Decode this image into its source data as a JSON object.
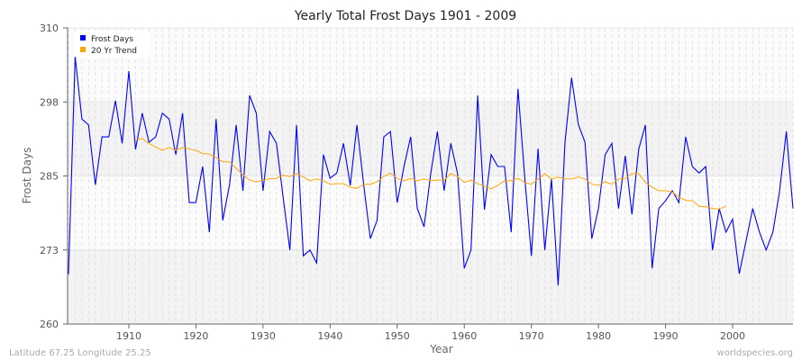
{
  "chart_data": {
    "type": "line",
    "title": "Yearly Total Frost Days 1901 - 2009",
    "xlabel": "Year",
    "ylabel": "Frost Days",
    "xlim": [
      1901,
      2009
    ],
    "ylim": [
      260,
      310
    ],
    "yticks": [
      {
        "value": 260,
        "label": "260"
      },
      {
        "value": 272.5,
        "label": "273"
      },
      {
        "value": 285,
        "label": "285"
      },
      {
        "value": 297.5,
        "label": "298"
      },
      {
        "value": 310,
        "label": "310"
      }
    ],
    "xticks": [
      1910,
      1920,
      1930,
      1940,
      1950,
      1960,
      1970,
      1980,
      1990,
      2000
    ],
    "grid": true,
    "legend_position": "top-left",
    "series": [
      {
        "name": "Frost Days",
        "color": "#0000ff",
        "x_start": 1901,
        "values": [
          268.4,
          305.1,
          294.6,
          293.6,
          283.5,
          291.6,
          291.6,
          297.7,
          290.5,
          302.7,
          289.5,
          295.6,
          290.7,
          291.6,
          295.6,
          294.6,
          288.6,
          295.6,
          280.5,
          280.5,
          286.6,
          275.5,
          294.6,
          277.5,
          283.5,
          293.6,
          282.5,
          298.6,
          295.6,
          282.5,
          292.5,
          290.5,
          281.4,
          272.5,
          293.6,
          271.5,
          272.5,
          270.3,
          288.6,
          284.6,
          285.5,
          290.5,
          283.4,
          293.6,
          283.5,
          274.4,
          277.5,
          291.6,
          292.5,
          280.5,
          286.5,
          291.6,
          279.5,
          276.4,
          285.4,
          292.5,
          282.5,
          290.5,
          285.4,
          269.4,
          272.5,
          298.6,
          279.3,
          288.6,
          286.6,
          286.6,
          275.5,
          299.7,
          285.0,
          271.5,
          289.6,
          272.5,
          284.5,
          266.5,
          290.5,
          301.6,
          293.7,
          290.7,
          274.4,
          279.5,
          288.6,
          290.5,
          279.5,
          288.4,
          278.5,
          289.5,
          293.6,
          269.4,
          279.5,
          280.8,
          282.5,
          280.5,
          291.6,
          286.6,
          285.5,
          286.6,
          272.5,
          279.5,
          275.5,
          277.7,
          268.5,
          274.0,
          279.5,
          275.5,
          272.5,
          275.5,
          282.4,
          292.5,
          279.5
        ]
      },
      {
        "name": "20 Yr Trend",
        "color": "#ffa500",
        "x_start": 1911,
        "values": [
          291.1,
          291.3,
          290.5,
          289.9,
          289.3,
          289.8,
          289.3,
          289.8,
          289.6,
          289.3,
          288.8,
          288.7,
          288.1,
          287.4,
          287.4,
          286.3,
          285.2,
          284.3,
          284.0,
          284.3,
          284.5,
          284.6,
          285.1,
          284.9,
          285.4,
          284.8,
          284.2,
          284.5,
          284.2,
          283.6,
          283.7,
          283.7,
          283.1,
          282.9,
          283.6,
          283.6,
          284.0,
          284.9,
          285.5,
          284.6,
          284.2,
          284.6,
          284.2,
          284.5,
          284.2,
          284.3,
          284.3,
          285.4,
          284.9,
          283.9,
          284.3,
          283.7,
          283.3,
          282.8,
          283.4,
          284.2,
          284.2,
          284.6,
          283.9,
          283.6,
          284.5,
          285.4,
          284.5,
          284.8,
          284.5,
          284.5,
          284.8,
          284.5,
          283.6,
          283.4,
          284.0,
          283.6,
          284.5,
          284.6,
          285.4,
          285.4,
          283.9,
          283.1,
          282.5,
          282.5,
          282.3,
          281.4,
          280.9,
          280.8,
          279.9,
          279.8,
          279.5,
          279.4,
          279.9
        ]
      }
    ]
  },
  "footer": {
    "location": "Latitude 67.25 Longitude 25.25",
    "source": "worldspecies.org"
  }
}
